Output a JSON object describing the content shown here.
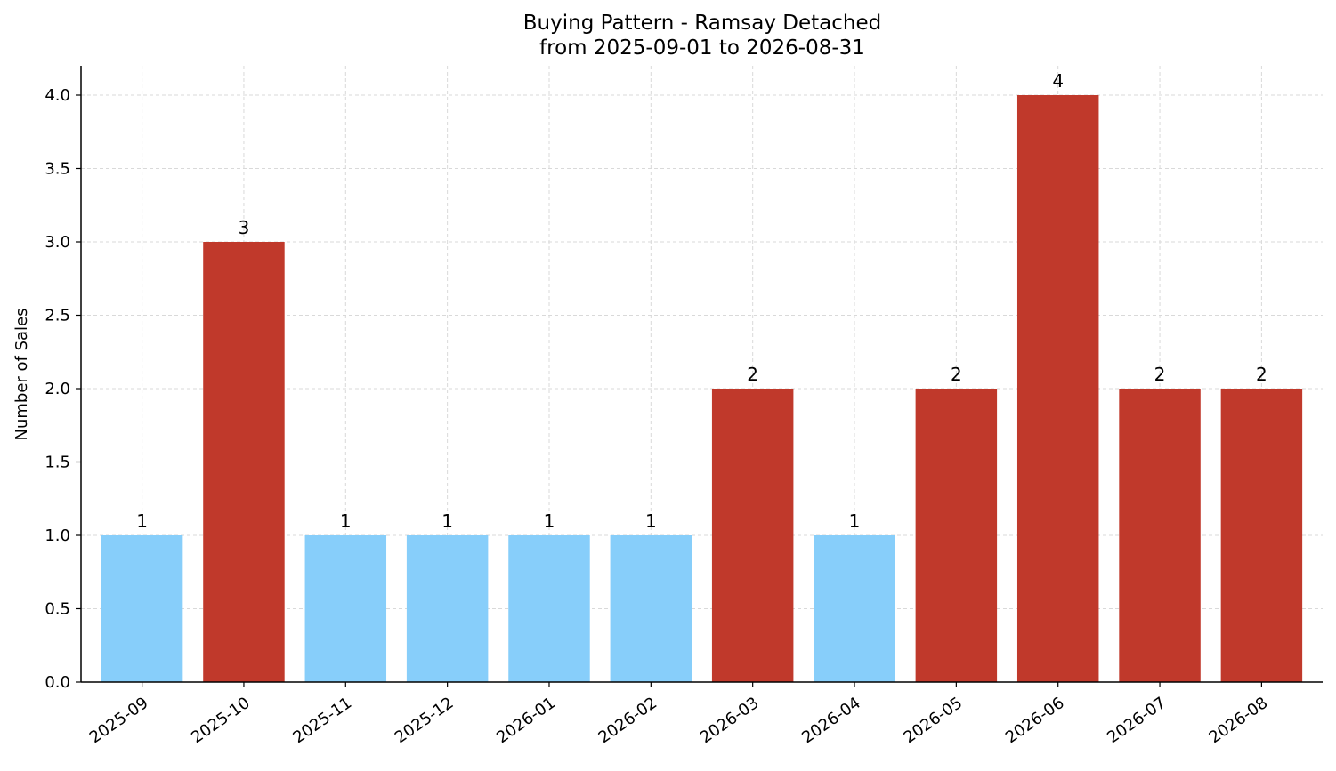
{
  "chart_data": {
    "type": "bar",
    "title": "Buying Pattern - Ramsay Detached",
    "subtitle": "from 2025-09-01 to 2026-08-31",
    "xlabel": "",
    "ylabel": "Number of Sales",
    "categories": [
      "2025-09",
      "2025-10",
      "2025-11",
      "2025-12",
      "2026-01",
      "2026-02",
      "2026-03",
      "2026-04",
      "2026-05",
      "2026-06",
      "2026-07",
      "2026-08"
    ],
    "values": [
      1,
      3,
      1,
      1,
      1,
      1,
      2,
      1,
      2,
      4,
      2,
      2
    ],
    "data_labels": [
      "1",
      "3",
      "1",
      "1",
      "1",
      "1",
      "2",
      "1",
      "2",
      "4",
      "2",
      "2"
    ],
    "ylim": [
      0,
      4.2
    ],
    "yticks": [
      0.0,
      0.5,
      1.0,
      1.5,
      2.0,
      2.5,
      3.0,
      3.5,
      4.0
    ],
    "ytick_labels": [
      "0.0",
      "0.5",
      "1.0",
      "1.5",
      "2.0",
      "2.5",
      "3.0",
      "3.5",
      "4.0"
    ],
    "grid": true,
    "legend": "none",
    "colors": {
      "low": "#87CEFA",
      "high": "#C0392B",
      "grid": "#d9d9d9",
      "axis": "#000000"
    },
    "color_rule": "values >= 2 drawn in high color, values below 2 in low color"
  }
}
